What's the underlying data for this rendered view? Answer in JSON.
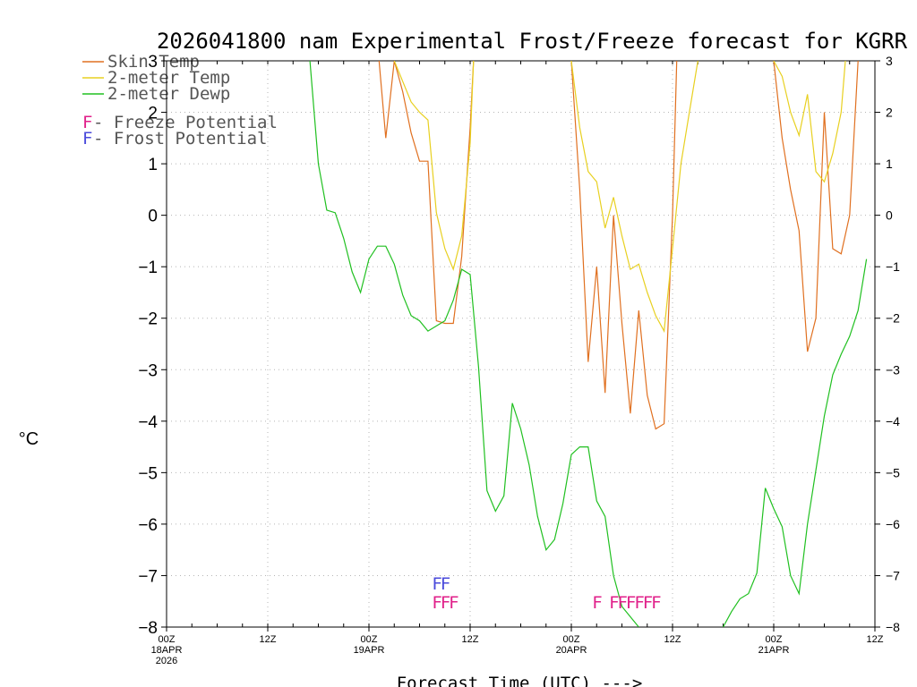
{
  "chart_data": {
    "type": "line",
    "title": "2026041800 nam Experimental Frost/Freeze forecast for KGRR",
    "ylabel": "°C",
    "xlabel": "Forecast Time (UTC) --->",
    "xlim": [
      0,
      84
    ],
    "ylim": [
      -8,
      3
    ],
    "y_ticks": [
      3,
      2,
      1,
      0,
      -1,
      -2,
      -3,
      -4,
      -5,
      -6,
      -7,
      -8
    ],
    "x_ticks": [
      {
        "hour": 0,
        "lines": [
          "00Z",
          "18APR",
          "2026"
        ]
      },
      {
        "hour": 12,
        "lines": [
          "12Z"
        ]
      },
      {
        "hour": 24,
        "lines": [
          "00Z",
          "19APR"
        ]
      },
      {
        "hour": 36,
        "lines": [
          "12Z"
        ]
      },
      {
        "hour": 48,
        "lines": [
          "00Z",
          "20APR"
        ]
      },
      {
        "hour": 60,
        "lines": [
          "12Z"
        ]
      },
      {
        "hour": 72,
        "lines": [
          "00Z",
          "21APR"
        ]
      },
      {
        "hour": 84,
        "lines": [
          "12Z"
        ]
      }
    ],
    "grid": true,
    "series": [
      {
        "name": "Skin Temp",
        "color": "#e07020",
        "points": [
          [
            25.2,
            3
          ],
          [
            26,
            1.5
          ],
          [
            27,
            3
          ],
          [
            28,
            2.4
          ],
          [
            29,
            1.6
          ],
          [
            30,
            1.05
          ],
          [
            31,
            1.05
          ],
          [
            32,
            -2.05
          ],
          [
            33,
            -2.1
          ],
          [
            34,
            -2.1
          ],
          [
            35,
            -0.8
          ],
          [
            36,
            1.7
          ],
          [
            36.4,
            3
          ],
          [
            48,
            3
          ],
          [
            49,
            0.5
          ],
          [
            50,
            -2.85
          ],
          [
            51,
            -1
          ],
          [
            52,
            -3.45
          ],
          [
            53,
            0
          ],
          [
            54,
            -2.1
          ],
          [
            55,
            -3.85
          ],
          [
            56,
            -1.85
          ],
          [
            57,
            -3.5
          ],
          [
            58,
            -4.15
          ],
          [
            59,
            -4.05
          ],
          [
            60,
            0
          ],
          [
            60.5,
            3
          ],
          [
            72,
            3
          ],
          [
            73,
            1.5
          ],
          [
            74,
            0.5
          ],
          [
            75,
            -0.3
          ],
          [
            76,
            -2.65
          ],
          [
            77,
            -2
          ],
          [
            78,
            2
          ],
          [
            79,
            -0.65
          ],
          [
            80,
            -0.75
          ],
          [
            81,
            0
          ],
          [
            82,
            3
          ]
        ]
      },
      {
        "name": "2-meter Temp",
        "color": "#e8d020",
        "points": [
          [
            27,
            3
          ],
          [
            28,
            2.6
          ],
          [
            29,
            2.2
          ],
          [
            30,
            2
          ],
          [
            31,
            1.85
          ],
          [
            32,
            0.05
          ],
          [
            33,
            -0.65
          ],
          [
            34,
            -1.05
          ],
          [
            35,
            -0.4
          ],
          [
            36,
            1.4
          ],
          [
            36.4,
            3
          ],
          [
            48,
            3
          ],
          [
            49,
            1.7
          ],
          [
            50,
            0.85
          ],
          [
            51,
            0.65
          ],
          [
            52,
            -0.25
          ],
          [
            53,
            0.35
          ],
          [
            54,
            -0.4
          ],
          [
            55,
            -1.05
          ],
          [
            56,
            -0.95
          ],
          [
            57,
            -1.5
          ],
          [
            58,
            -1.95
          ],
          [
            59,
            -2.25
          ],
          [
            60,
            -0.65
          ],
          [
            61,
            1
          ],
          [
            62,
            2
          ],
          [
            63,
            3
          ],
          [
            72,
            3
          ],
          [
            73,
            2.7
          ],
          [
            74,
            2
          ],
          [
            75,
            1.55
          ],
          [
            76,
            2.35
          ],
          [
            77,
            0.85
          ],
          [
            78,
            0.65
          ],
          [
            79,
            1.2
          ],
          [
            80,
            2
          ],
          [
            80.5,
            3
          ]
        ]
      },
      {
        "name": "2-meter Dewp",
        "color": "#20c020",
        "points": [
          [
            17,
            3
          ],
          [
            18,
            1
          ],
          [
            19,
            0.1
          ],
          [
            20,
            0.05
          ],
          [
            21,
            -0.45
          ],
          [
            22,
            -1.1
          ],
          [
            23,
            -1.5
          ],
          [
            24,
            -0.85
          ],
          [
            25,
            -0.6
          ],
          [
            26,
            -0.6
          ],
          [
            27,
            -0.95
          ],
          [
            28,
            -1.55
          ],
          [
            29,
            -1.95
          ],
          [
            30,
            -2.05
          ],
          [
            31,
            -2.25
          ],
          [
            32,
            -2.15
          ],
          [
            33,
            -2.05
          ],
          [
            34,
            -1.65
          ],
          [
            35,
            -1.05
          ],
          [
            36,
            -1.15
          ],
          [
            37,
            -2.95
          ],
          [
            38,
            -5.35
          ],
          [
            39,
            -5.75
          ],
          [
            40,
            -5.45
          ],
          [
            41,
            -3.65
          ],
          [
            42,
            -4.15
          ],
          [
            43,
            -4.85
          ],
          [
            44,
            -5.85
          ],
          [
            45,
            -6.5
          ],
          [
            46,
            -6.3
          ],
          [
            47,
            -5.6
          ],
          [
            48,
            -4.65
          ],
          [
            49,
            -4.5
          ],
          [
            50,
            -4.5
          ],
          [
            51,
            -5.55
          ],
          [
            52,
            -5.85
          ],
          [
            53,
            -7
          ],
          [
            54,
            -7.6
          ],
          [
            55,
            -7.8
          ],
          [
            56,
            -8
          ],
          [
            66,
            -8
          ],
          [
            67,
            -7.7
          ],
          [
            68,
            -7.45
          ],
          [
            69,
            -7.35
          ],
          [
            70,
            -6.95
          ],
          [
            71,
            -5.3
          ],
          [
            72,
            -5.7
          ],
          [
            73,
            -6.05
          ],
          [
            74,
            -7
          ],
          [
            75,
            -7.35
          ],
          [
            76,
            -6
          ],
          [
            77,
            -4.95
          ],
          [
            78,
            -3.9
          ],
          [
            79,
            -3.1
          ],
          [
            80,
            -2.7
          ],
          [
            81,
            -2.35
          ],
          [
            82,
            -1.85
          ],
          [
            83,
            -0.85
          ]
        ]
      }
    ],
    "legend": [
      {
        "label": "Skin Temp",
        "color": "#e07020"
      },
      {
        "label": "2-meter Temp",
        "color": "#e8d020"
      },
      {
        "label": "2-meter Dewp",
        "color": "#20c020"
      }
    ],
    "potential_legend": [
      {
        "symbol": "F",
        "text": " - Freeze Potential",
        "color": "#e0208a"
      },
      {
        "symbol": "F",
        "text": " - Frost Potential",
        "color": "#4a4adb"
      }
    ],
    "frost_markers": {
      "symbol": "F",
      "color": "#4a4adb",
      "hours": [
        32,
        33
      ]
    },
    "freeze_markers": {
      "symbol": "F",
      "color": "#e0208a",
      "hours": [
        32,
        33,
        34,
        51,
        53,
        54,
        55,
        56,
        57,
        58
      ]
    }
  }
}
